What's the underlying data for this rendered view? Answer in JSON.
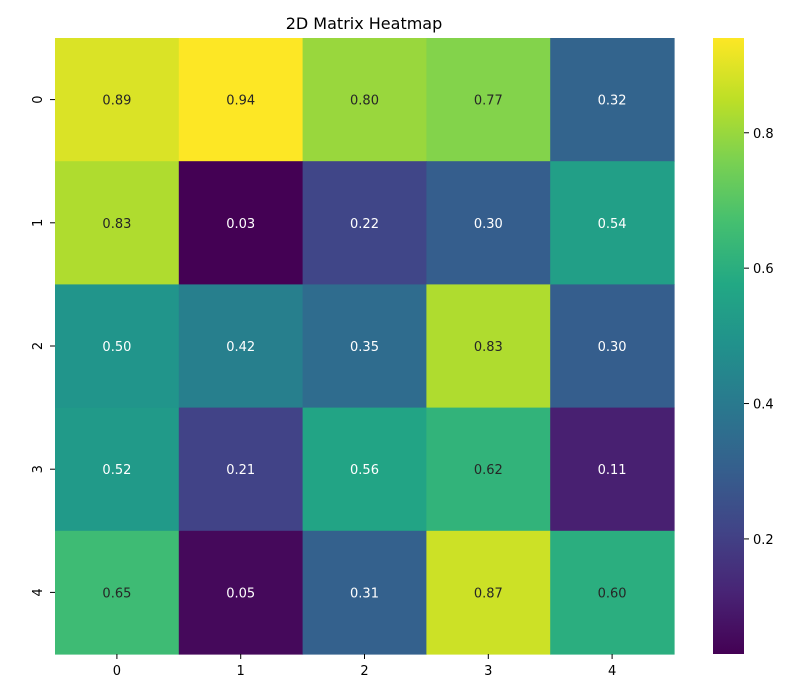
{
  "chart_data": {
    "type": "heatmap",
    "title": "2D Matrix Heatmap",
    "xlabel": "",
    "ylabel": "",
    "x_categories": [
      "0",
      "1",
      "2",
      "3",
      "4"
    ],
    "y_categories": [
      "0",
      "1",
      "2",
      "3",
      "4"
    ],
    "values": [
      [
        0.89,
        0.94,
        0.8,
        0.77,
        0.32
      ],
      [
        0.83,
        0.03,
        0.22,
        0.3,
        0.54
      ],
      [
        0.5,
        0.42,
        0.35,
        0.83,
        0.3
      ],
      [
        0.52,
        0.21,
        0.56,
        0.62,
        0.11
      ],
      [
        0.65,
        0.05,
        0.31,
        0.87,
        0.6
      ]
    ],
    "colormap": "viridis",
    "vmin": 0.03,
    "vmax": 0.94,
    "annotation_format": "0.00",
    "colorbar": {
      "ticks": [
        0.2,
        0.4,
        0.6,
        0.8
      ],
      "tick_labels": [
        "0.2",
        "0.4",
        "0.6",
        "0.8"
      ]
    },
    "grid": false
  }
}
